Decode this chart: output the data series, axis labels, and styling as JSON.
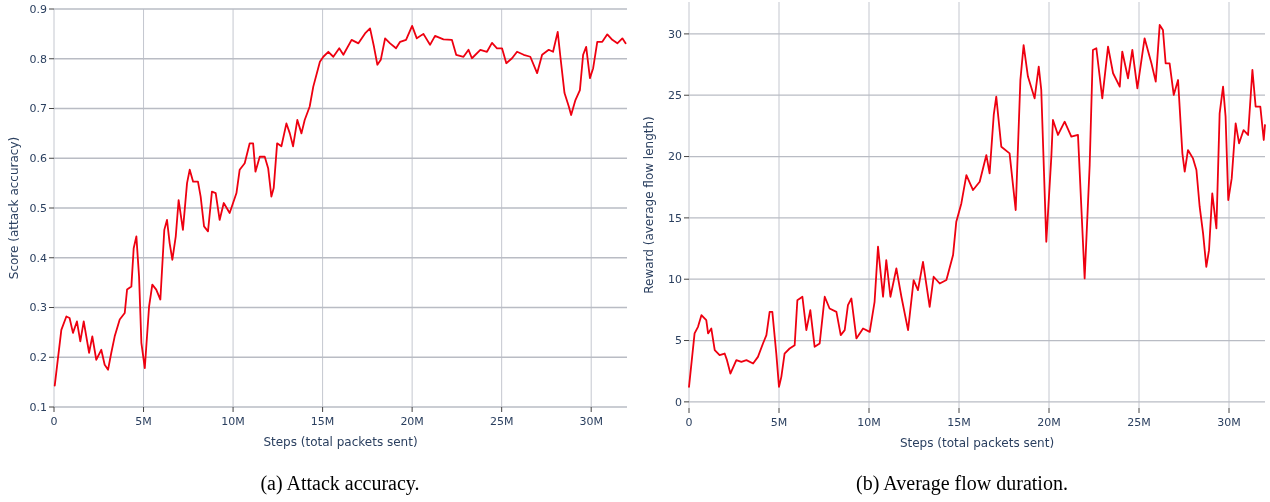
{
  "chart_data": [
    {
      "type": "line",
      "title": "(a) Attack accuracy.",
      "xlabel": "Steps (total packets sent)",
      "ylabel": "Score (attack accuracy)",
      "xlim": [
        0,
        32000000
      ],
      "ylim": [
        0.1,
        0.9
      ],
      "xticks": [
        {
          "value": 0,
          "label": "0"
        },
        {
          "value": 5000000,
          "label": "5M"
        },
        {
          "value": 10000000,
          "label": "10M"
        },
        {
          "value": 15000000,
          "label": "15M"
        },
        {
          "value": 20000000,
          "label": "20M"
        },
        {
          "value": 25000000,
          "label": "25M"
        },
        {
          "value": 30000000,
          "label": "30M"
        }
      ],
      "yticks": [
        0.1,
        0.2,
        0.3,
        0.4,
        0.5,
        0.6,
        0.7,
        0.8,
        0.9
      ],
      "grid": true,
      "marker": "none",
      "line_style": "solid",
      "series": [
        {
          "color": "#ee0010",
          "x": [
            40000,
            410000,
            690000,
            870000,
            1060000,
            1280000,
            1470000,
            1660000,
            1960000,
            2140000,
            2360000,
            2640000,
            2830000,
            3020000,
            3200000,
            3390000,
            3670000,
            3950000,
            4080000,
            4320000,
            4450000,
            4600000,
            4750000,
            4880000,
            5070000,
            5310000,
            5490000,
            5710000,
            5940000,
            6160000,
            6310000,
            6460000,
            6610000,
            6800000,
            6960000,
            7200000,
            7430000,
            7580000,
            7770000,
            8040000,
            8190000,
            8380000,
            8600000,
            8820000,
            9030000,
            9250000,
            9480000,
            9810000,
            10190000,
            10370000,
            10650000,
            10930000,
            11120000,
            11250000,
            11490000,
            11770000,
            11960000,
            12140000,
            12270000,
            12460000,
            12700000,
            12980000,
            13170000,
            13350000,
            13590000,
            13820000,
            14000000,
            14280000,
            14480000,
            14850000,
            15040000,
            15320000,
            15600000,
            15930000,
            16160000,
            16620000,
            17000000,
            17370000,
            17650000,
            17870000,
            18060000,
            18250000,
            18490000,
            18770000,
            19100000,
            19330000,
            19660000,
            20000000,
            20260000,
            20630000,
            21000000,
            21280000,
            21750000,
            22220000,
            22460000,
            22870000,
            23150000,
            23340000,
            23810000,
            24180000,
            24460000,
            24740000,
            25020000,
            25260000,
            25580000,
            25860000,
            26230000,
            26600000,
            26980000,
            27260000,
            27630000,
            27870000,
            28130000,
            28280000,
            28510000,
            28750000,
            28880000,
            29120000,
            29370000,
            29550000,
            29720000,
            29930000,
            30110000,
            30340000,
            30620000,
            30900000,
            31180000,
            31460000,
            31740000,
            31920000
          ],
          "values": [
            0.143,
            0.255,
            0.282,
            0.279,
            0.249,
            0.272,
            0.232,
            0.272,
            0.209,
            0.242,
            0.195,
            0.215,
            0.185,
            0.175,
            0.209,
            0.242,
            0.276,
            0.289,
            0.336,
            0.342,
            0.419,
            0.443,
            0.362,
            0.229,
            0.178,
            0.302,
            0.346,
            0.336,
            0.316,
            0.456,
            0.476,
            0.429,
            0.396,
            0.443,
            0.516,
            0.456,
            0.55,
            0.577,
            0.553,
            0.553,
            0.523,
            0.463,
            0.453,
            0.533,
            0.53,
            0.476,
            0.51,
            0.49,
            0.53,
            0.577,
            0.59,
            0.63,
            0.63,
            0.573,
            0.603,
            0.603,
            0.58,
            0.523,
            0.54,
            0.63,
            0.624,
            0.67,
            0.65,
            0.624,
            0.677,
            0.65,
            0.677,
            0.704,
            0.744,
            0.794,
            0.804,
            0.814,
            0.804,
            0.821,
            0.808,
            0.838,
            0.831,
            0.851,
            0.861,
            0.824,
            0.788,
            0.798,
            0.841,
            0.831,
            0.821,
            0.834,
            0.838,
            0.866,
            0.841,
            0.85,
            0.828,
            0.846,
            0.839,
            0.838,
            0.808,
            0.804,
            0.818,
            0.801,
            0.818,
            0.814,
            0.832,
            0.821,
            0.821,
            0.791,
            0.801,
            0.814,
            0.808,
            0.804,
            0.771,
            0.808,
            0.818,
            0.814,
            0.854,
            0.804,
            0.731,
            0.704,
            0.687,
            0.717,
            0.737,
            0.808,
            0.824,
            0.761,
            0.781,
            0.834,
            0.834,
            0.849,
            0.838,
            0.831,
            0.841,
            0.831
          ]
        }
      ]
    },
    {
      "type": "line",
      "title": "(b) Average flow duration.",
      "xlabel": "Steps (total packets sent)",
      "ylabel": "Reward (average flow length)",
      "xlim": [
        0,
        32000000
      ],
      "ylim": [
        -0.5,
        32.6
      ],
      "xticks": [
        {
          "value": 0,
          "label": "0"
        },
        {
          "value": 5000000,
          "label": "5M"
        },
        {
          "value": 10000000,
          "label": "10M"
        },
        {
          "value": 15000000,
          "label": "15M"
        },
        {
          "value": 20000000,
          "label": "20M"
        },
        {
          "value": 25000000,
          "label": "25M"
        },
        {
          "value": 30000000,
          "label": "30M"
        }
      ],
      "yticks": [
        0,
        5,
        10,
        15,
        20,
        25,
        30
      ],
      "grid": true,
      "marker": "none",
      "line_style": "solid",
      "series": [
        {
          "color": "#ee0010",
          "x": [
            0,
            310000,
            500000,
            690000,
            960000,
            1060000,
            1240000,
            1430000,
            1700000,
            1980000,
            2110000,
            2300000,
            2630000,
            2910000,
            3190000,
            3560000,
            3830000,
            4110000,
            4300000,
            4480000,
            4630000,
            4850000,
            5000000,
            5130000,
            5310000,
            5590000,
            5870000,
            6020000,
            6300000,
            6520000,
            6740000,
            6980000,
            7260000,
            7440000,
            7540000,
            7810000,
            8190000,
            8430000,
            8650000,
            8830000,
            9020000,
            9300000,
            9670000,
            10040000,
            10310000,
            10500000,
            10780000,
            10960000,
            11190000,
            11520000,
            11800000,
            12170000,
            12480000,
            12720000,
            13000000,
            13370000,
            13590000,
            13930000,
            14300000,
            14670000,
            14850000,
            15130000,
            15410000,
            15780000,
            16150000,
            16520000,
            16700000,
            16930000,
            17070000,
            17350000,
            17810000,
            18150000,
            18410000,
            18590000,
            18830000,
            19200000,
            19430000,
            19570000,
            19850000,
            20130000,
            20220000,
            20500000,
            20870000,
            21240000,
            21610000,
            21980000,
            22260000,
            22440000,
            22630000,
            22960000,
            23280000,
            23560000,
            23930000,
            24070000,
            24390000,
            24630000,
            24910000,
            25310000,
            25690000,
            25930000,
            26150000,
            26330000,
            26480000,
            26700000,
            26930000,
            27170000,
            27410000,
            27540000,
            27720000,
            28000000,
            28190000,
            28370000,
            28560000,
            28740000,
            28890000,
            29070000,
            29300000,
            29480000,
            29670000,
            29810000,
            29960000,
            30150000,
            30370000,
            30560000,
            30810000,
            31060000,
            31300000,
            31480000,
            31740000,
            31930000,
            32000000
          ],
          "values": [
            1.22,
            5.58,
            6.12,
            7.07,
            6.66,
            5.58,
            5.98,
            4.22,
            3.81,
            3.94,
            3.4,
            2.31,
            3.4,
            3.26,
            3.4,
            3.13,
            3.67,
            4.76,
            5.44,
            7.34,
            7.34,
            3.94,
            1.22,
            2.04,
            3.94,
            4.35,
            4.62,
            8.29,
            8.57,
            5.85,
            7.48,
            4.49,
            4.76,
            7.21,
            8.57,
            7.61,
            7.34,
            5.44,
            5.85,
            7.89,
            8.43,
            5.17,
            5.98,
            5.71,
            8.16,
            12.65,
            8.57,
            11.56,
            8.57,
            10.88,
            8.57,
            5.85,
            9.93,
            9.11,
            11.42,
            7.75,
            10.2,
            9.65,
            9.93,
            11.97,
            14.69,
            16.18,
            18.49,
            17.27,
            17.95,
            20.12,
            18.63,
            23.39,
            24.88,
            20.8,
            20.26,
            15.64,
            26.23,
            29.08,
            26.52,
            24.75,
            27.33,
            25.43,
            13.05,
            19.99,
            22.98,
            21.76,
            22.84,
            21.62,
            21.76,
            10.06,
            19.31,
            28.69,
            28.83,
            24.75,
            28.96,
            26.79,
            25.7,
            28.56,
            26.38,
            28.69,
            25.56,
            29.64,
            27.6,
            26.11,
            30.73,
            30.32,
            27.6,
            27.6,
            25.02,
            26.24,
            20.26,
            18.77,
            20.53,
            19.85,
            18.9,
            15.91,
            13.73,
            11.01,
            12.37,
            16.99,
            14.14,
            23.52,
            25.7,
            23.25,
            16.45,
            18.22,
            22.71,
            21.08,
            22.16,
            21.76,
            27.06,
            24.07,
            24.07,
            21.35,
            22.57
          ]
        }
      ]
    }
  ]
}
